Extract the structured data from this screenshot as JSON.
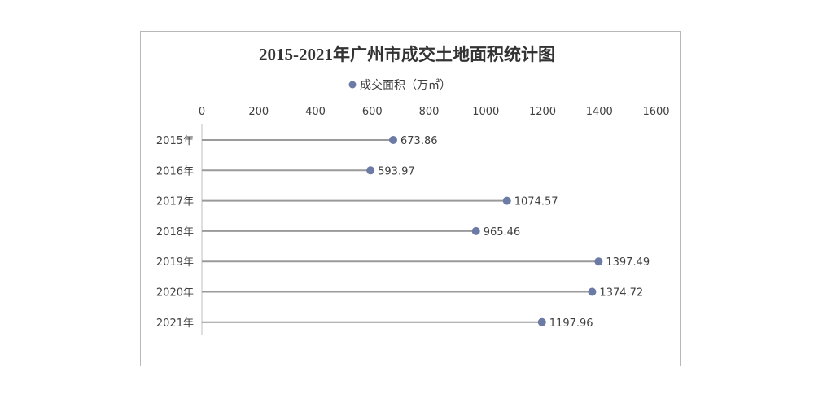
{
  "chart_data": {
    "type": "lollipop",
    "title": "2015-2021年广州市成交土地面积统计图",
    "legend": {
      "label": "成交面积（万㎡）",
      "position": "top",
      "color": "#6c7aa6"
    },
    "categories": [
      "2015年",
      "2016年",
      "2017年",
      "2018年",
      "2019年",
      "2020年",
      "2021年"
    ],
    "values": [
      673.86,
      593.97,
      1074.57,
      965.46,
      1397.49,
      1374.72,
      1197.96
    ],
    "value_labels": [
      "673.86",
      "593.97",
      "1074.57",
      "965.46",
      "1397.49",
      "1374.72",
      "1197.96"
    ],
    "xlim": [
      0,
      1600
    ],
    "xticks": [
      "0",
      "200",
      "400",
      "600",
      "800",
      "1000",
      "1200",
      "1400",
      "1600"
    ],
    "x_axis_position": "top",
    "grid": false,
    "colors": {
      "marker": "#6c7aa6",
      "stem": "#9a9a9a",
      "text": "#404040",
      "title": "#333333"
    }
  }
}
